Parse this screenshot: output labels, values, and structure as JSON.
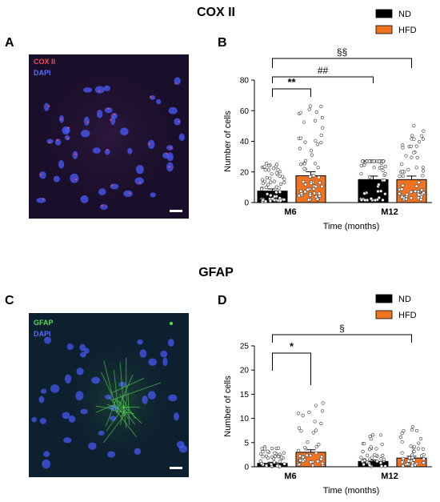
{
  "titles": {
    "top": "COX II",
    "bottom": "GFAP"
  },
  "panel_letters": {
    "a": "A",
    "b": "B",
    "c": "C",
    "d": "D"
  },
  "images": {
    "top": {
      "stain_label": "COX II",
      "dapi_label": "DAPI",
      "stain_color": "#ff4a4a",
      "dapi_color": "#4a5bff",
      "background": "#1a0f2a"
    },
    "bottom": {
      "stain_label": "GFAP",
      "dapi_label": "DAPI",
      "stain_color": "#55dd55",
      "dapi_color": "#4a5bff",
      "background": "#0d2030"
    }
  },
  "colors": {
    "ND": "#000000",
    "HFD": "#f07321"
  },
  "chart_data": [
    {
      "type": "bar",
      "panel": "B",
      "categories": [
        "M6",
        "M12"
      ],
      "series": [
        {
          "name": "ND",
          "values": [
            7.5,
            15
          ]
        },
        {
          "name": "HFD",
          "values": [
            17.5,
            15
          ]
        }
      ],
      "xlabel": "Time (months)",
      "ylabel": "Number of cells",
      "ylim": [
        0,
        80
      ],
      "yticks": [
        0,
        20,
        40,
        60,
        80
      ],
      "legend": [
        "ND",
        "HFD"
      ],
      "legend_position": "top-right",
      "annotations": [
        {
          "text": "**",
          "from": "M6 ND",
          "to": "M6 HFD"
        },
        {
          "text": "##",
          "from": "M6 ND",
          "to": "M12 ND"
        },
        {
          "text": "§§",
          "from": "M6 ND",
          "to": "M12 HFD"
        }
      ]
    },
    {
      "type": "bar",
      "panel": "D",
      "categories": [
        "M6",
        "M12"
      ],
      "series": [
        {
          "name": "ND",
          "values": [
            0.7,
            1.1
          ]
        },
        {
          "name": "HFD",
          "values": [
            3.0,
            1.8
          ]
        }
      ],
      "xlabel": "Time (months)",
      "ylabel": "Number of cells",
      "ylim": [
        0,
        25
      ],
      "yticks": [
        0,
        5,
        10,
        15,
        20,
        25
      ],
      "legend": [
        "ND",
        "HFD"
      ],
      "legend_position": "top-right",
      "annotations": [
        {
          "text": "*",
          "from": "M6 ND",
          "to": "M6 HFD"
        },
        {
          "text": "§",
          "from": "M6 ND",
          "to": "M12 HFD"
        }
      ]
    }
  ]
}
